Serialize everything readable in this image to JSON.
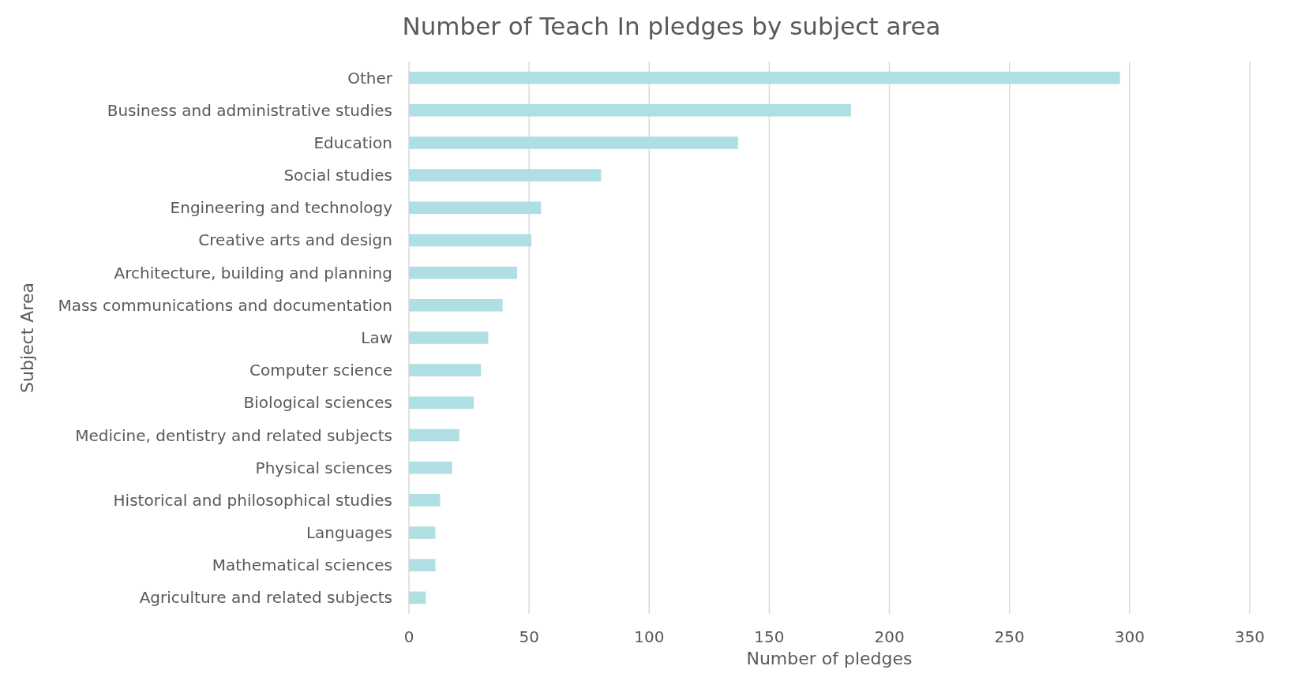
{
  "chart_data": {
    "type": "bar",
    "orientation": "horizontal",
    "title": "Number of Teach In pledges by subject area",
    "xlabel": "Number of pledges",
    "ylabel": "Subject Area",
    "categories": [
      "Other",
      "Business and administrative studies",
      "Education",
      "Social studies",
      "Engineering and technology",
      "Creative arts and design",
      "Architecture, building and planning",
      "Mass communications and documentation",
      "Law",
      "Computer science",
      "Biological sciences",
      "Medicine, dentistry and related subjects",
      "Physical sciences",
      "Historical and philosophical studies",
      "Languages",
      "Mathematical sciences",
      "Agriculture and related subjects"
    ],
    "values": [
      296,
      184,
      137,
      80,
      55,
      51,
      45,
      39,
      33,
      30,
      27,
      21,
      18,
      13,
      11,
      11,
      7
    ],
    "color": "#b0dfe3",
    "xlim": [
      0,
      350
    ],
    "xticks": [
      0,
      50,
      100,
      150,
      200,
      250,
      300,
      350
    ],
    "grid": "x"
  }
}
